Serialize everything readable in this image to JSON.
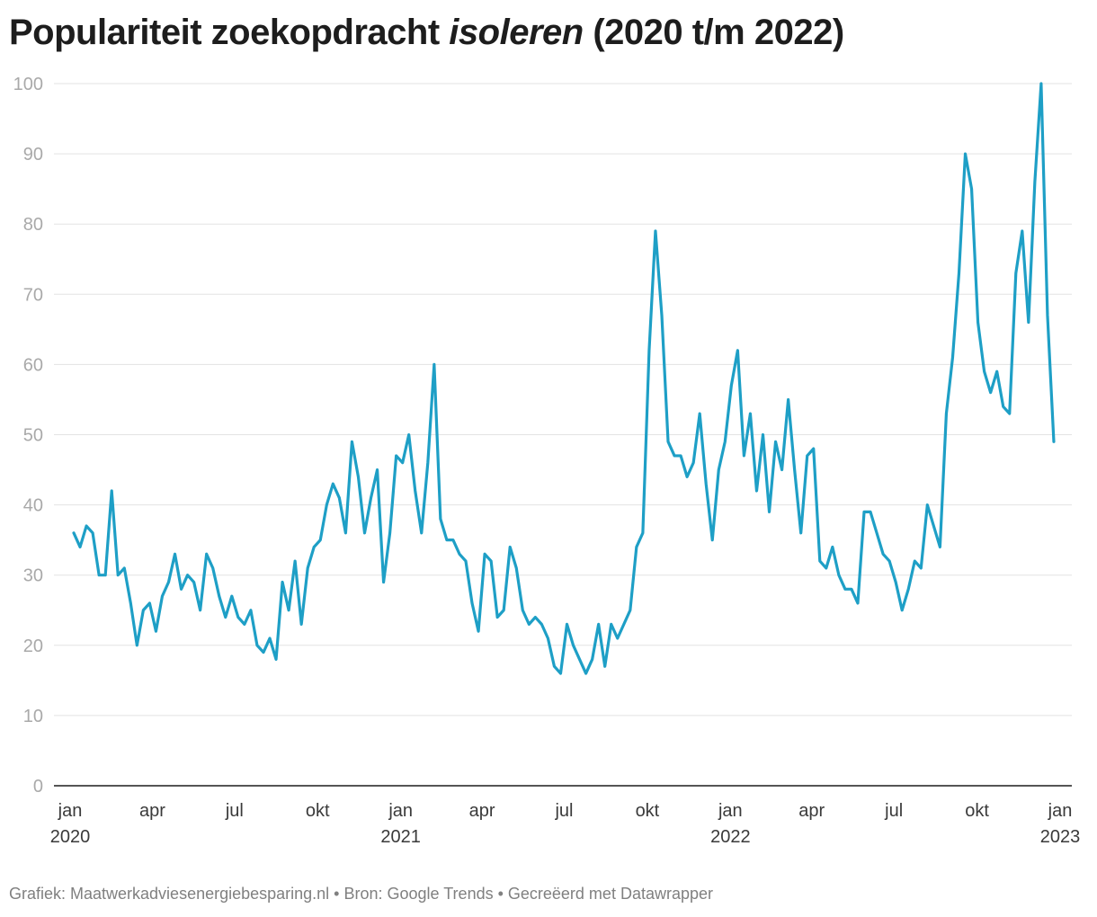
{
  "title": {
    "prefix": "Populariteit zoekopdracht ",
    "emphasis": "isoleren",
    "suffix": " (2020 t/m 2022)"
  },
  "footer": "Grafiek: Maatwerkadviesenergiebesparing.nl • Bron: Google Trends • Gecreëerd met Datawrapper",
  "colors": {
    "line": "#1e9fc6",
    "grid": "#e3e3e3",
    "axis": "#1d1d1d"
  },
  "chart_data": {
    "type": "line",
    "x_start": "2020-01-05",
    "x_interval": "weekly",
    "ylim": [
      0,
      100
    ],
    "yticks": [
      0,
      10,
      20,
      30,
      40,
      50,
      60,
      70,
      80,
      90,
      100
    ],
    "xticks": [
      {
        "line1": "jan",
        "line2": "2020"
      },
      {
        "line1": "apr",
        "line2": ""
      },
      {
        "line1": "jul",
        "line2": ""
      },
      {
        "line1": "okt",
        "line2": ""
      },
      {
        "line1": "jan",
        "line2": "2021"
      },
      {
        "line1": "apr",
        "line2": ""
      },
      {
        "line1": "jul",
        "line2": ""
      },
      {
        "line1": "okt",
        "line2": ""
      },
      {
        "line1": "jan",
        "line2": "2022"
      },
      {
        "line1": "apr",
        "line2": ""
      },
      {
        "line1": "jul",
        "line2": ""
      },
      {
        "line1": "okt",
        "line2": ""
      },
      {
        "line1": "jan",
        "line2": "2023"
      }
    ],
    "values": [
      36,
      34,
      37,
      36,
      30,
      30,
      42,
      30,
      31,
      26,
      20,
      25,
      26,
      22,
      27,
      29,
      33,
      28,
      30,
      29,
      25,
      33,
      31,
      27,
      24,
      27,
      24,
      23,
      25,
      20,
      19,
      21,
      18,
      29,
      25,
      32,
      23,
      31,
      34,
      35,
      40,
      43,
      41,
      36,
      49,
      44,
      36,
      41,
      45,
      29,
      36,
      47,
      46,
      50,
      42,
      36,
      46,
      60,
      38,
      35,
      35,
      33,
      32,
      26,
      22,
      33,
      32,
      24,
      25,
      34,
      31,
      25,
      23,
      24,
      23,
      21,
      17,
      16,
      23,
      20,
      18,
      16,
      18,
      23,
      17,
      23,
      21,
      23,
      25,
      34,
      36,
      62,
      79,
      67,
      49,
      47,
      47,
      44,
      46,
      53,
      43,
      35,
      45,
      49,
      57,
      62,
      47,
      53,
      42,
      50,
      39,
      49,
      45,
      55,
      45,
      36,
      47,
      48,
      32,
      31,
      34,
      30,
      28,
      28,
      26,
      39,
      39,
      36,
      33,
      32,
      29,
      25,
      28,
      32,
      31,
      40,
      37,
      34,
      53,
      61,
      73,
      90,
      85,
      66,
      59,
      56,
      59,
      54,
      53,
      73,
      79,
      66,
      86,
      100,
      67,
      49
    ]
  }
}
